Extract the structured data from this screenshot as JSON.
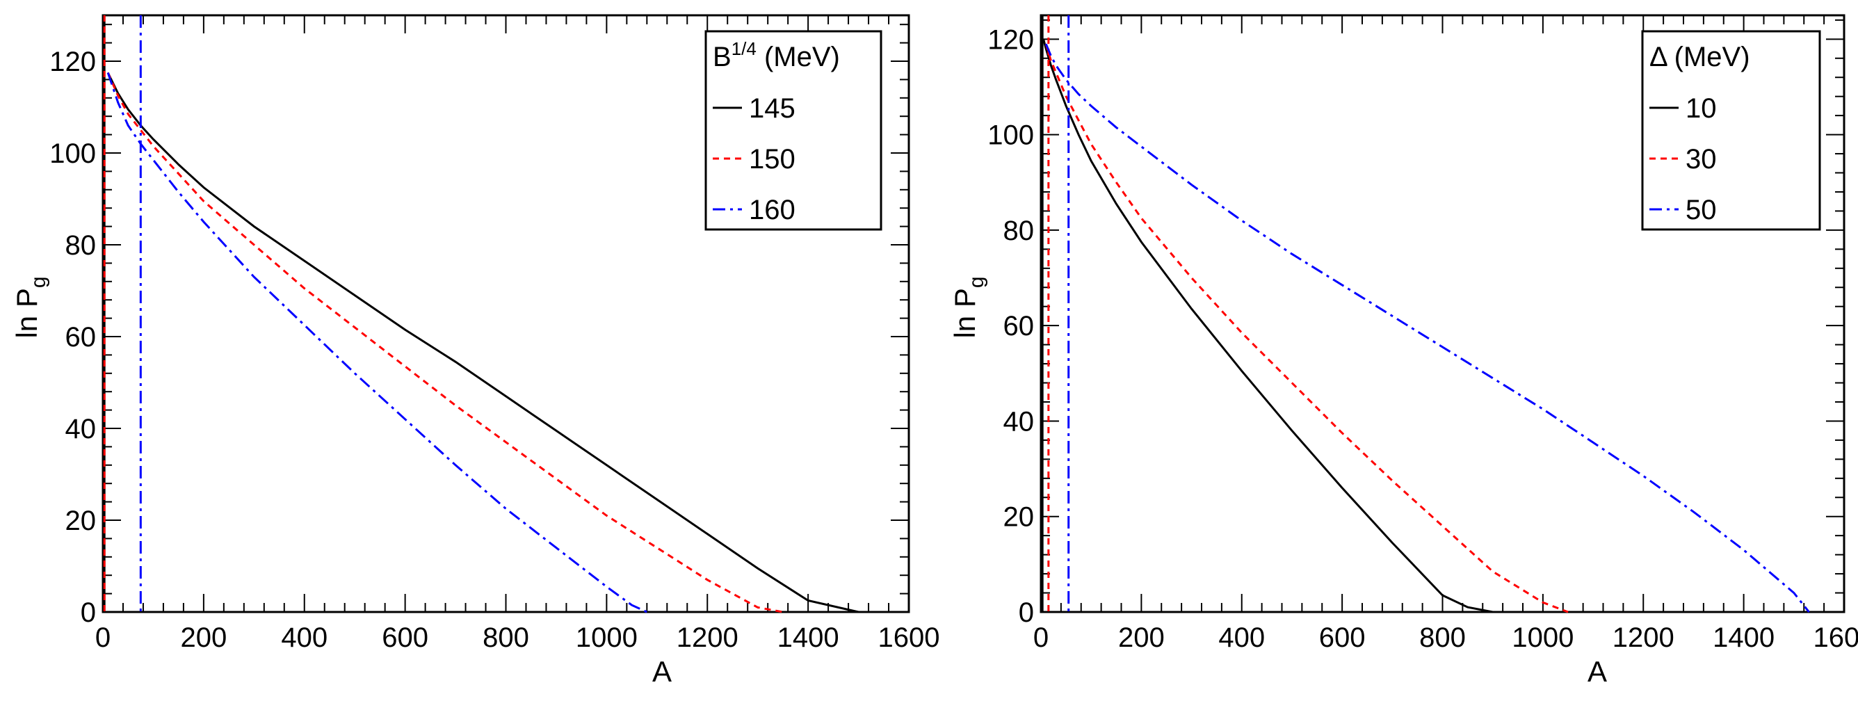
{
  "chart_data": [
    {
      "type": "line",
      "xlabel": "A",
      "ylabel_main": "ln P",
      "ylabel_sub": "g",
      "xlim": [
        0,
        1600
      ],
      "ylim": [
        0,
        130
      ],
      "xticks": [
        0,
        200,
        400,
        600,
        800,
        1000,
        1200,
        1400,
        1600
      ],
      "xtick_labels": [
        "0",
        "200",
        "400",
        "600",
        "800",
        "1000",
        "1200",
        "1400",
        "1600"
      ],
      "yticks": [
        0,
        20,
        40,
        60,
        80,
        100,
        120
      ],
      "ytick_labels": [
        "0",
        "20",
        "40",
        "60",
        "80",
        "100",
        "120"
      ],
      "legend": {
        "title_main": "B",
        "title_sup": "1/4",
        "title_rest": " (MeV)",
        "position": "top-right"
      },
      "series": [
        {
          "name": "145",
          "color": "#000000",
          "style": "solid",
          "x": [
            10,
            30,
            50,
            75,
            100,
            150,
            200,
            300,
            400,
            500,
            600,
            700,
            800,
            900,
            1000,
            1100,
            1200,
            1300,
            1400,
            1500
          ],
          "y": [
            117.5,
            113,
            109.5,
            106,
            103,
            97.5,
            92.5,
            84,
            76.5,
            69,
            61.5,
            54.5,
            47,
            39.5,
            32,
            24.5,
            17,
            9.5,
            2.5,
            0
          ],
          "vline_x": 3
        },
        {
          "name": "150",
          "color": "#ff0000",
          "style": "dashed",
          "x": [
            10,
            30,
            50,
            75,
            100,
            150,
            200,
            300,
            400,
            500,
            600,
            700,
            800,
            900,
            1000,
            1100,
            1200,
            1300,
            1350
          ],
          "y": [
            117.5,
            112.5,
            108.5,
            105,
            101.5,
            95.5,
            89.5,
            80,
            70.5,
            62,
            53.5,
            45,
            37,
            29,
            21,
            14,
            7,
            1,
            0
          ],
          "vline_x": 3
        },
        {
          "name": "160",
          "color": "#0000ff",
          "style": "dashdot",
          "x": [
            10,
            30,
            50,
            75,
            100,
            150,
            200,
            300,
            400,
            500,
            600,
            700,
            800,
            900,
            1000,
            1050,
            1080
          ],
          "y": [
            117.5,
            111,
            106,
            102,
            98.5,
            91.5,
            85,
            73,
            62.5,
            52,
            42,
            32,
            22.5,
            14,
            5.5,
            1.5,
            0
          ],
          "vline_x": 75
        }
      ]
    },
    {
      "type": "line",
      "xlabel": "A",
      "ylabel_main": "ln P",
      "ylabel_sub": "g",
      "xlim": [
        0,
        1600
      ],
      "ylim": [
        0,
        125
      ],
      "xticks": [
        0,
        200,
        400,
        600,
        800,
        1000,
        1200,
        1400,
        1600
      ],
      "xtick_labels": [
        "0",
        "200",
        "400",
        "600",
        "800",
        "1000",
        "1200",
        "1400",
        "1600"
      ],
      "yticks": [
        0,
        20,
        40,
        60,
        80,
        100,
        120
      ],
      "ytick_labels": [
        "0",
        "20",
        "40",
        "60",
        "80",
        "100",
        "120"
      ],
      "legend": {
        "title_main": "Δ",
        "title_sup": "",
        "title_rest": " (MeV)",
        "position": "top-right"
      },
      "series": [
        {
          "name": "10",
          "color": "#000000",
          "style": "solid",
          "x": [
            5,
            10,
            20,
            30,
            50,
            75,
            100,
            150,
            200,
            300,
            400,
            500,
            600,
            700,
            800,
            850,
            900
          ],
          "y": [
            120,
            118,
            114.5,
            111.5,
            106,
            100,
            94.5,
            85.5,
            77.5,
            63.5,
            50.5,
            38,
            26,
            14.5,
            3.5,
            1,
            0
          ],
          "vline_x": 3
        },
        {
          "name": "30",
          "color": "#ff0000",
          "style": "dashed",
          "x": [
            10,
            20,
            30,
            50,
            75,
            100,
            150,
            200,
            300,
            400,
            500,
            600,
            700,
            800,
            900,
            1000,
            1050
          ],
          "y": [
            119,
            115.5,
            113,
            108,
            103,
            98,
            90,
            82.5,
            70,
            58.5,
            48,
            37.5,
            27.5,
            18,
            8.5,
            2,
            0
          ],
          "vline_x": 15
        },
        {
          "name": "50",
          "color": "#0000ff",
          "style": "dashdot",
          "x": [
            10,
            20,
            30,
            50,
            75,
            100,
            150,
            200,
            300,
            400,
            500,
            600,
            700,
            800,
            900,
            1000,
            1100,
            1200,
            1300,
            1400,
            1500,
            1530
          ],
          "y": [
            119,
            116.5,
            114.5,
            111.5,
            108.5,
            106,
            101.5,
            97.5,
            89.5,
            82,
            75,
            68.5,
            62,
            55.5,
            49,
            42.5,
            35.5,
            28.5,
            21,
            13,
            4,
            0
          ],
          "vline_x": 55
        }
      ]
    }
  ]
}
